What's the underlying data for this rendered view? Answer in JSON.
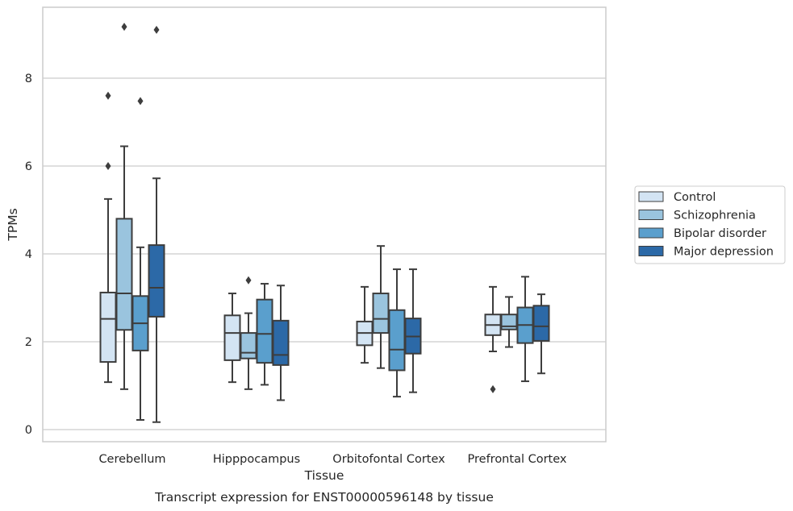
{
  "chart_data": {
    "type": "box",
    "caption": "Transcript expression for ENST00000596148 by tissue",
    "xlabel": "Tissue",
    "ylabel": "TPMs",
    "ylim": [
      -0.25,
      9.65
    ],
    "yticks": [
      0,
      2,
      4,
      6,
      8
    ],
    "grid": "horizontal",
    "legend_position": "right",
    "categories": [
      "Cerebellum",
      "Hipppocampus",
      "Orbitofontal Cortex",
      "Prefrontal Cortex"
    ],
    "series": [
      {
        "name": "Control",
        "color": "#d3e4f3",
        "boxes": [
          {
            "whisker_low": 1.08,
            "q1": 1.54,
            "median": 2.52,
            "q3": 3.12,
            "whisker_high": 5.25,
            "outliers": [
              6.0,
              7.6
            ]
          },
          {
            "whisker_low": 1.08,
            "q1": 1.58,
            "median": 2.2,
            "q3": 2.6,
            "whisker_high": 3.1,
            "outliers": []
          },
          {
            "whisker_low": 1.52,
            "q1": 1.92,
            "median": 2.2,
            "q3": 2.46,
            "whisker_high": 3.25,
            "outliers": []
          },
          {
            "whisker_low": 1.78,
            "q1": 2.15,
            "median": 2.38,
            "q3": 2.62,
            "whisker_high": 3.25,
            "outliers": [
              0.92
            ]
          }
        ]
      },
      {
        "name": "Schizophrenia",
        "color": "#9ac4de",
        "boxes": [
          {
            "whisker_low": 0.92,
            "q1": 2.27,
            "median": 3.1,
            "q3": 4.8,
            "whisker_high": 6.45,
            "outliers": [
              9.17
            ]
          },
          {
            "whisker_low": 0.92,
            "q1": 1.62,
            "median": 1.75,
            "q3": 2.2,
            "whisker_high": 2.65,
            "outliers": [
              3.4
            ]
          },
          {
            "whisker_low": 1.4,
            "q1": 2.2,
            "median": 2.52,
            "q3": 3.1,
            "whisker_high": 4.18,
            "outliers": []
          },
          {
            "whisker_low": 1.88,
            "q1": 2.28,
            "median": 2.35,
            "q3": 2.62,
            "whisker_high": 3.02,
            "outliers": []
          }
        ]
      },
      {
        "name": "Bipolar disorder",
        "color": "#5a9fcd",
        "boxes": [
          {
            "whisker_low": 0.22,
            "q1": 1.8,
            "median": 2.42,
            "q3": 3.04,
            "whisker_high": 4.15,
            "outliers": [
              7.48
            ]
          },
          {
            "whisker_low": 1.02,
            "q1": 1.52,
            "median": 2.18,
            "q3": 2.96,
            "whisker_high": 3.32,
            "outliers": []
          },
          {
            "whisker_low": 0.75,
            "q1": 1.35,
            "median": 1.82,
            "q3": 2.72,
            "whisker_high": 3.65,
            "outliers": []
          },
          {
            "whisker_low": 1.1,
            "q1": 1.97,
            "median": 2.38,
            "q3": 2.78,
            "whisker_high": 3.48,
            "outliers": []
          }
        ]
      },
      {
        "name": "Major depression",
        "color": "#2c69a7",
        "boxes": [
          {
            "whisker_low": 0.17,
            "q1": 2.57,
            "median": 3.23,
            "q3": 4.2,
            "whisker_high": 5.72,
            "outliers": [
              9.1
            ]
          },
          {
            "whisker_low": 0.67,
            "q1": 1.47,
            "median": 1.7,
            "q3": 2.48,
            "whisker_high": 3.28,
            "outliers": []
          },
          {
            "whisker_low": 0.85,
            "q1": 1.73,
            "median": 2.12,
            "q3": 2.53,
            "whisker_high": 3.65,
            "outliers": []
          },
          {
            "whisker_low": 1.28,
            "q1": 2.02,
            "median": 2.35,
            "q3": 2.82,
            "whisker_high": 3.08,
            "outliers": []
          }
        ]
      }
    ]
  }
}
